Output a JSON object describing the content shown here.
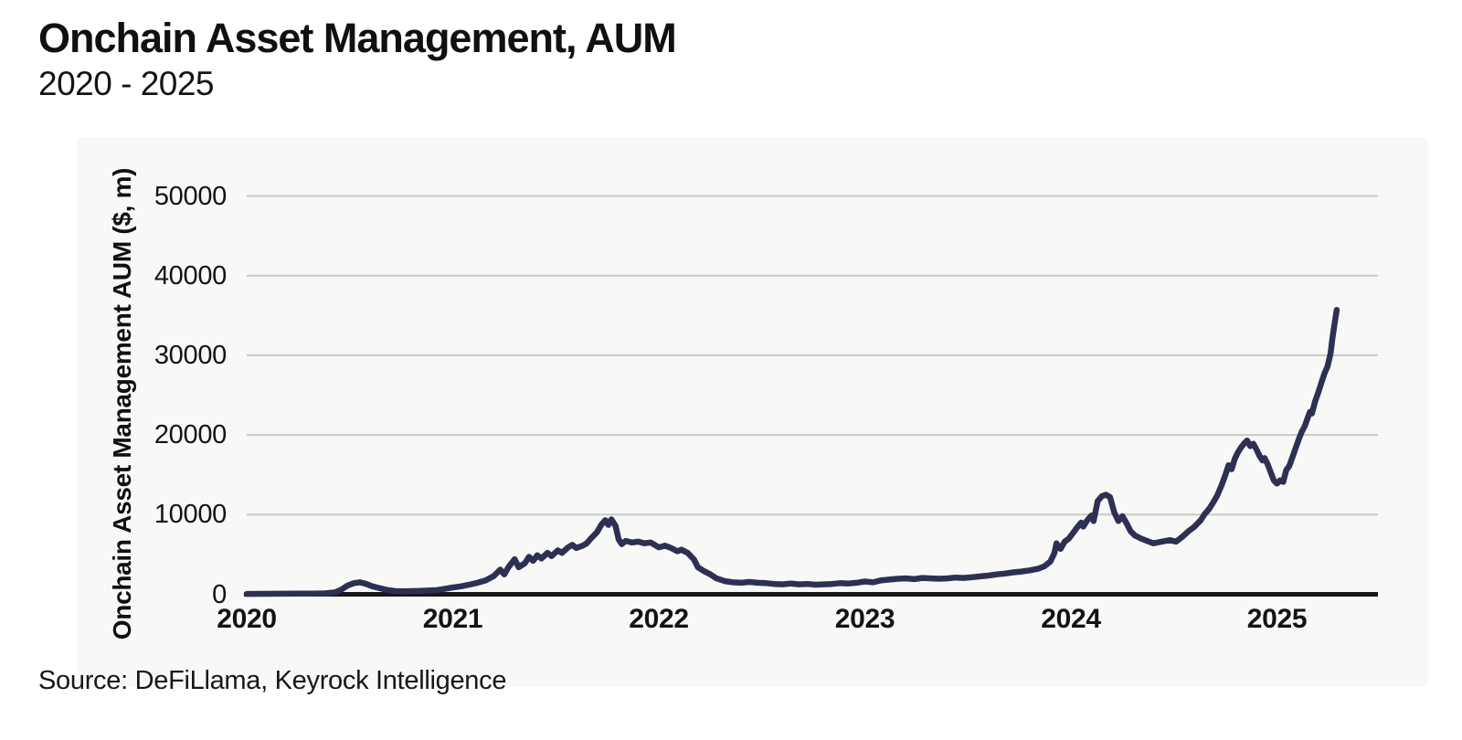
{
  "page": {
    "title": "Onchain Asset Management, AUM",
    "subtitle": "2020 - 2025",
    "source": "Source: DeFiLlama, Keyrock Intelligence"
  },
  "colors": {
    "page_bg": "#ffffff",
    "panel_bg": "#f8f8f6",
    "line": "#2e3053",
    "grid": "#c9c9c7",
    "axis": "#17171b",
    "text": "#111111"
  },
  "chart_data": {
    "type": "line",
    "title": "Onchain Asset Management, AUM",
    "subtitle": "2020 - 2025",
    "xlabel": "",
    "ylabel": "Onchain Asset Management AUM ($, m)",
    "source": "DeFiLlama, Keyrock Intelligence",
    "x_ticks": [
      "2020",
      "2021",
      "2022",
      "2023",
      "2024",
      "2025"
    ],
    "y_ticks": [
      0,
      10000,
      20000,
      30000,
      40000,
      50000
    ],
    "xlim": [
      2020,
      2025.49
    ],
    "ylim": [
      0,
      50000
    ],
    "grid": "horizontal-only",
    "legend": "none",
    "series": [
      {
        "name": "Onchain Asset Management AUM ($, m)",
        "color": "#2e3053",
        "points": [
          [
            2020.0,
            50
          ],
          [
            2020.08,
            60
          ],
          [
            2020.16,
            70
          ],
          [
            2020.24,
            80
          ],
          [
            2020.32,
            90
          ],
          [
            2020.38,
            120
          ],
          [
            2020.43,
            250
          ],
          [
            2020.46,
            600
          ],
          [
            2020.49,
            1100
          ],
          [
            2020.52,
            1400
          ],
          [
            2020.55,
            1500
          ],
          [
            2020.58,
            1300
          ],
          [
            2020.61,
            1000
          ],
          [
            2020.64,
            800
          ],
          [
            2020.68,
            550
          ],
          [
            2020.72,
            400
          ],
          [
            2020.76,
            380
          ],
          [
            2020.8,
            400
          ],
          [
            2020.84,
            430
          ],
          [
            2020.88,
            470
          ],
          [
            2020.92,
            520
          ],
          [
            2020.96,
            680
          ],
          [
            2021.0,
            850
          ],
          [
            2021.04,
            1000
          ],
          [
            2021.08,
            1200
          ],
          [
            2021.12,
            1450
          ],
          [
            2021.16,
            1750
          ],
          [
            2021.2,
            2300
          ],
          [
            2021.23,
            3100
          ],
          [
            2021.25,
            2500
          ],
          [
            2021.27,
            3400
          ],
          [
            2021.3,
            4400
          ],
          [
            2021.32,
            3400
          ],
          [
            2021.35,
            3900
          ],
          [
            2021.37,
            4700
          ],
          [
            2021.39,
            4200
          ],
          [
            2021.41,
            4900
          ],
          [
            2021.43,
            4500
          ],
          [
            2021.46,
            5200
          ],
          [
            2021.48,
            4800
          ],
          [
            2021.51,
            5500
          ],
          [
            2021.53,
            5200
          ],
          [
            2021.56,
            5900
          ],
          [
            2021.58,
            6200
          ],
          [
            2021.6,
            5800
          ],
          [
            2021.63,
            6100
          ],
          [
            2021.65,
            6400
          ],
          [
            2021.67,
            7000
          ],
          [
            2021.7,
            7800
          ],
          [
            2021.72,
            8700
          ],
          [
            2021.74,
            9300
          ],
          [
            2021.755,
            8700
          ],
          [
            2021.77,
            9400
          ],
          [
            2021.79,
            8600
          ],
          [
            2021.805,
            6900
          ],
          [
            2021.82,
            6300
          ],
          [
            2021.84,
            6700
          ],
          [
            2021.87,
            6500
          ],
          [
            2021.9,
            6600
          ],
          [
            2021.93,
            6400
          ],
          [
            2021.96,
            6500
          ],
          [
            2021.98,
            6200
          ],
          [
            2022.0,
            5900
          ],
          [
            2022.03,
            6100
          ],
          [
            2022.06,
            5800
          ],
          [
            2022.09,
            5400
          ],
          [
            2022.11,
            5600
          ],
          [
            2022.14,
            5200
          ],
          [
            2022.17,
            4400
          ],
          [
            2022.19,
            3400
          ],
          [
            2022.22,
            2900
          ],
          [
            2022.25,
            2500
          ],
          [
            2022.28,
            2000
          ],
          [
            2022.32,
            1650
          ],
          [
            2022.36,
            1500
          ],
          [
            2022.4,
            1450
          ],
          [
            2022.44,
            1550
          ],
          [
            2022.48,
            1450
          ],
          [
            2022.52,
            1400
          ],
          [
            2022.56,
            1300
          ],
          [
            2022.6,
            1250
          ],
          [
            2022.64,
            1350
          ],
          [
            2022.68,
            1250
          ],
          [
            2022.72,
            1300
          ],
          [
            2022.76,
            1200
          ],
          [
            2022.8,
            1250
          ],
          [
            2022.84,
            1300
          ],
          [
            2022.88,
            1400
          ],
          [
            2022.92,
            1350
          ],
          [
            2022.96,
            1450
          ],
          [
            2023.0,
            1600
          ],
          [
            2023.04,
            1500
          ],
          [
            2023.08,
            1750
          ],
          [
            2023.12,
            1850
          ],
          [
            2023.16,
            1950
          ],
          [
            2023.2,
            2000
          ],
          [
            2023.24,
            1900
          ],
          [
            2023.28,
            2050
          ],
          [
            2023.32,
            2000
          ],
          [
            2023.36,
            1950
          ],
          [
            2023.4,
            2000
          ],
          [
            2023.44,
            2100
          ],
          [
            2023.48,
            2050
          ],
          [
            2023.52,
            2150
          ],
          [
            2023.56,
            2250
          ],
          [
            2023.6,
            2350
          ],
          [
            2023.64,
            2500
          ],
          [
            2023.68,
            2600
          ],
          [
            2023.72,
            2750
          ],
          [
            2023.76,
            2850
          ],
          [
            2023.8,
            3000
          ],
          [
            2023.84,
            3200
          ],
          [
            2023.87,
            3500
          ],
          [
            2023.9,
            4100
          ],
          [
            2023.92,
            5200
          ],
          [
            2023.93,
            6400
          ],
          [
            2023.95,
            5700
          ],
          [
            2023.97,
            6600
          ],
          [
            2023.99,
            7000
          ],
          [
            2024.01,
            7700
          ],
          [
            2024.03,
            8400
          ],
          [
            2024.05,
            9000
          ],
          [
            2024.06,
            8500
          ],
          [
            2024.08,
            9300
          ],
          [
            2024.1,
            9900
          ],
          [
            2024.11,
            9200
          ],
          [
            2024.13,
            11700
          ],
          [
            2024.15,
            12300
          ],
          [
            2024.17,
            12500
          ],
          [
            2024.19,
            12200
          ],
          [
            2024.21,
            10300
          ],
          [
            2024.23,
            9200
          ],
          [
            2024.25,
            9800
          ],
          [
            2024.27,
            8900
          ],
          [
            2024.29,
            7900
          ],
          [
            2024.31,
            7400
          ],
          [
            2024.34,
            7000
          ],
          [
            2024.37,
            6700
          ],
          [
            2024.4,
            6400
          ],
          [
            2024.44,
            6600
          ],
          [
            2024.48,
            6800
          ],
          [
            2024.51,
            6600
          ],
          [
            2024.54,
            7200
          ],
          [
            2024.57,
            7900
          ],
          [
            2024.6,
            8500
          ],
          [
            2024.63,
            9300
          ],
          [
            2024.65,
            10100
          ],
          [
            2024.67,
            10700
          ],
          [
            2024.69,
            11500
          ],
          [
            2024.71,
            12400
          ],
          [
            2024.73,
            13600
          ],
          [
            2024.75,
            15000
          ],
          [
            2024.765,
            16200
          ],
          [
            2024.78,
            15700
          ],
          [
            2024.795,
            17000
          ],
          [
            2024.81,
            17800
          ],
          [
            2024.825,
            18400
          ],
          [
            2024.84,
            18900
          ],
          [
            2024.855,
            19300
          ],
          [
            2024.87,
            18600
          ],
          [
            2024.885,
            18900
          ],
          [
            2024.9,
            18200
          ],
          [
            2024.915,
            17400
          ],
          [
            2024.93,
            16800
          ],
          [
            2024.94,
            17100
          ],
          [
            2024.955,
            16300
          ],
          [
            2024.97,
            15300
          ],
          [
            2024.985,
            14300
          ],
          [
            2025.0,
            13900
          ],
          [
            2025.015,
            14300
          ],
          [
            2025.03,
            14100
          ],
          [
            2025.045,
            15600
          ],
          [
            2025.06,
            16100
          ],
          [
            2025.075,
            17200
          ],
          [
            2025.09,
            18300
          ],
          [
            2025.105,
            19400
          ],
          [
            2025.12,
            20400
          ],
          [
            2025.135,
            21100
          ],
          [
            2025.15,
            22200
          ],
          [
            2025.16,
            22900
          ],
          [
            2025.17,
            22700
          ],
          [
            2025.185,
            24200
          ],
          [
            2025.2,
            25300
          ],
          [
            2025.215,
            26500
          ],
          [
            2025.23,
            27700
          ],
          [
            2025.245,
            28600
          ],
          [
            2025.26,
            30200
          ],
          [
            2025.27,
            32300
          ],
          [
            2025.28,
            34000
          ],
          [
            2025.29,
            35700
          ]
        ]
      }
    ]
  }
}
